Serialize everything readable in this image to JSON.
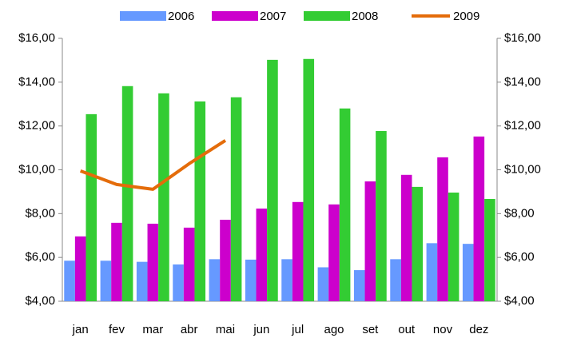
{
  "chart_data": {
    "type": "bar",
    "categories": [
      "jan",
      "fev",
      "mar",
      "abr",
      "mai",
      "jun",
      "jul",
      "ago",
      "set",
      "out",
      "nov",
      "dez"
    ],
    "series": [
      {
        "name": "2006",
        "color": "#6699ff",
        "type": "bar",
        "values": [
          5.85,
          5.85,
          5.8,
          5.68,
          5.92,
          5.9,
          5.92,
          5.55,
          5.42,
          5.92,
          6.65,
          6.62
        ]
      },
      {
        "name": "2007",
        "color": "#cc00cc",
        "type": "bar",
        "values": [
          6.96,
          7.58,
          7.54,
          7.36,
          7.72,
          8.23,
          8.53,
          8.42,
          9.47,
          9.77,
          10.57,
          11.52
        ]
      },
      {
        "name": "2008",
        "color": "#33cc33",
        "type": "bar",
        "values": [
          12.54,
          13.82,
          13.49,
          13.12,
          13.31,
          15.02,
          15.06,
          12.8,
          11.77,
          9.22,
          8.96,
          8.67
        ]
      },
      {
        "name": "2009",
        "color": "#e46c0a",
        "type": "line",
        "values": [
          9.95,
          9.33,
          9.11,
          10.28,
          11.34,
          null,
          null,
          null,
          null,
          null,
          null,
          null
        ]
      }
    ],
    "ylim": [
      4,
      16
    ],
    "yticks": [
      {
        "value": 4,
        "label": "$4,00"
      },
      {
        "value": 6,
        "label": "$6,00"
      },
      {
        "value": 8,
        "label": "$8,00"
      },
      {
        "value": 10,
        "label": "$10,00"
      },
      {
        "value": 12,
        "label": "$12,00"
      },
      {
        "value": 14,
        "label": "$14,00"
      },
      {
        "value": 16,
        "label": "$16,00"
      }
    ],
    "y2lim": [
      4,
      16
    ],
    "y2ticks": [
      {
        "value": 4,
        "label": "$4,00"
      },
      {
        "value": 6,
        "label": "$6,00"
      },
      {
        "value": 8,
        "label": "$8,00"
      },
      {
        "value": 10,
        "label": "$10,00"
      },
      {
        "value": 12,
        "label": "$12,00"
      },
      {
        "value": 14,
        "label": "$14,00"
      },
      {
        "value": 16,
        "label": "$16,00"
      }
    ],
    "legend": "top"
  }
}
